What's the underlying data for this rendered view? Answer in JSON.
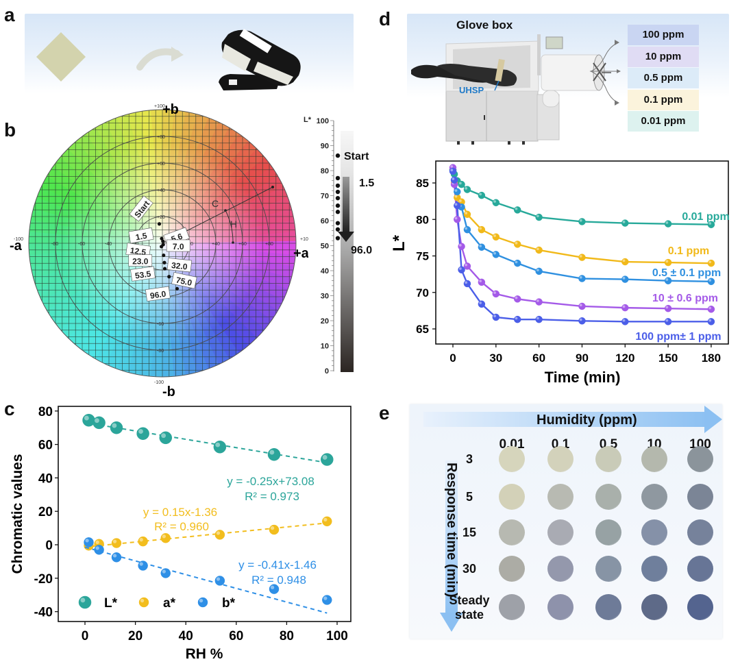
{
  "panels": {
    "a": {
      "letter": "a"
    },
    "b": {
      "letter": "b",
      "axis_labels": {
        "pos_b": "+b",
        "neg_b": "-b",
        "neg_a": "-a",
        "pos_a": "+a"
      },
      "ticks": [
        "-100",
        "-80",
        "-60",
        "-40",
        "-20",
        "+20",
        "+40",
        "+60",
        "+80",
        "+100"
      ],
      "chroma_label": "C",
      "hue_label": "H",
      "lstar_title": "L*",
      "lstar_ticks": [
        "0",
        "10",
        "20",
        "30",
        "40",
        "50",
        "60",
        "70",
        "80",
        "90",
        "100"
      ],
      "lstar_start_label": "Start",
      "lstar_arrow_from": "1.5",
      "lstar_arrow_to": "96.0"
    },
    "c": {
      "letter": "c"
    },
    "d": {
      "letter": "d",
      "glovebox_title": "Glove box",
      "sample_label": "UHSP",
      "ppm_levels": [
        {
          "label": "100  ppm",
          "color": "#c9d5f2"
        },
        {
          "label": "10  ppm",
          "color": "#e0dcf4"
        },
        {
          "label": "0.5  ppm",
          "color": "#dcebf8"
        },
        {
          "label": "0.1 ppm",
          "color": "#fbf3dc"
        },
        {
          "label": "0.01 ppm",
          "color": "#ddf2ef"
        }
      ]
    },
    "e": {
      "letter": "e",
      "humidity_title": "Humidity (ppm)",
      "response_title": "Response time (min)",
      "columns": [
        "0.01",
        "0.1",
        "0.5",
        "10",
        "100"
      ],
      "rows": [
        "3",
        "5",
        "15",
        "30",
        "Steady state"
      ],
      "swatch_colors": [
        [
          "#d6d5bc",
          "#d3d2bb",
          "#c9cbb8",
          "#b4b8ad",
          "#8b949b"
        ],
        [
          "#d3d1b8",
          "#b8bab2",
          "#a9b0ab",
          "#8f98a0",
          "#7b8596"
        ],
        [
          "#b7b9b1",
          "#a9abb3",
          "#97a2a4",
          "#8591a8",
          "#76829b"
        ],
        [
          "#acaca5",
          "#9498ac",
          "#8794a5",
          "#6f7f9c",
          "#677596"
        ],
        [
          "#9ea1a8",
          "#8e92ab",
          "#6e7b98",
          "#5e6a88",
          "#54648f"
        ]
      ]
    }
  },
  "colorwheel_points": [
    {
      "label": "Start",
      "a": -2.3,
      "b": 14.5
    },
    {
      "label": "1.5",
      "a": -0.5,
      "b": 3.5
    },
    {
      "label": "5.6",
      "a": 0.4,
      "b": 1.5
    },
    {
      "label": "7.0",
      "a": 0.6,
      "b": -1.0
    },
    {
      "label": "12.5",
      "a": -0.7,
      "b": -2.5
    },
    {
      "label": "23.0",
      "a": 0.9,
      "b": -9.0
    },
    {
      "label": "32.0",
      "a": 1.5,
      "b": -14.5
    },
    {
      "label": "53.5",
      "a": 1.8,
      "b": -19.0
    },
    {
      "label": "75.0",
      "a": 5.0,
      "b": -25.0
    },
    {
      "label": "96.0",
      "a": 11.0,
      "b": -34.0
    }
  ],
  "lstar_points": [
    86,
    77,
    74,
    71.5,
    69,
    66,
    63.5,
    59,
    56.5,
    53
  ],
  "chart_data": [
    {
      "id": "c",
      "type": "scatter",
      "title": "",
      "xlabel": "RH %",
      "ylabel": "Chromatic values",
      "xlim": [
        -9,
        111
      ],
      "ylim": [
        -45,
        82
      ],
      "xticks": [
        0,
        20,
        40,
        60,
        80,
        100
      ],
      "yticks": [
        -40,
        -20,
        0,
        20,
        40,
        60,
        80
      ],
      "x": [
        1.5,
        5.6,
        12.5,
        23.0,
        32.0,
        53.5,
        75.0,
        96.0
      ],
      "legend_position": "bottom-left",
      "series": [
        {
          "name": "L*",
          "color": "#2ba59a",
          "values": [
            74.5,
            73.0,
            70.0,
            66.5,
            64.0,
            58.5,
            54.0,
            51.0
          ],
          "fit": {
            "slope": -0.25,
            "intercept": 73.08,
            "equation": "y = -0.25x+73.08",
            "r2": "R² = 0.973"
          }
        },
        {
          "name": "a*",
          "color": "#f2bd1d",
          "values": [
            -0.5,
            0.5,
            1.0,
            2.0,
            4.0,
            6.0,
            9.0,
            14.0
          ],
          "fit": {
            "slope": 0.15,
            "intercept": -1.36,
            "equation": "y = 0.15x-1.36",
            "r2": "R² = 0.960"
          }
        },
        {
          "name": "b*",
          "color": "#2e8fe6",
          "values": [
            1.5,
            -3.0,
            -7.5,
            -12.5,
            -17.0,
            -21.5,
            -26.5,
            -33.0
          ],
          "fit": {
            "slope": -0.41,
            "intercept": -1.46,
            "equation": "y = -0.41x-1.46",
            "r2": "R² = 0.948"
          }
        }
      ]
    },
    {
      "id": "d",
      "type": "line",
      "title": "",
      "xlabel": "Time (min)",
      "ylabel": "L*",
      "xlim": [
        -11,
        193
      ],
      "ylim": [
        62.9,
        88
      ],
      "xticks": [
        0,
        30,
        60,
        90,
        120,
        150,
        180
      ],
      "yticks": [
        65,
        70,
        75,
        80,
        85
      ],
      "x": [
        0,
        1,
        3,
        6,
        10,
        20,
        30,
        45,
        60,
        90,
        120,
        150,
        180
      ],
      "series": [
        {
          "name": "0.01 ppm",
          "color": "#27a99a",
          "values": [
            86.8,
            86.2,
            85.3,
            84.8,
            84.1,
            83.3,
            82.3,
            81.3,
            80.3,
            79.7,
            79.5,
            79.4,
            79.3
          ]
        },
        {
          "name": "0.1 ppm",
          "color": "#f1b91a",
          "values": [
            86.8,
            85.0,
            83.0,
            82.4,
            80.7,
            78.6,
            77.6,
            76.6,
            75.8,
            74.8,
            74.2,
            74.1,
            74.0
          ]
        },
        {
          "name": "0.5 ± 0.1 ppm",
          "color": "#2f90e0",
          "values": [
            86.8,
            85.4,
            83.8,
            81.7,
            78.6,
            76.2,
            75.2,
            74.0,
            72.9,
            71.9,
            71.8,
            71.6,
            71.5
          ]
        },
        {
          "name": "10 ± 0.6 ppm",
          "color": "#a45ae8",
          "values": [
            87.1,
            84.8,
            80.0,
            76.3,
            73.6,
            71.4,
            69.8,
            69.1,
            68.7,
            68.1,
            67.9,
            67.8,
            67.7
          ]
        },
        {
          "name": "100 ppm± 1 ppm",
          "color": "#4b5ee8",
          "values": [
            86.6,
            85.4,
            81.9,
            73.1,
            71.2,
            68.4,
            66.6,
            66.3,
            66.3,
            66.1,
            66.0,
            66.0,
            66.0
          ]
        }
      ]
    }
  ]
}
